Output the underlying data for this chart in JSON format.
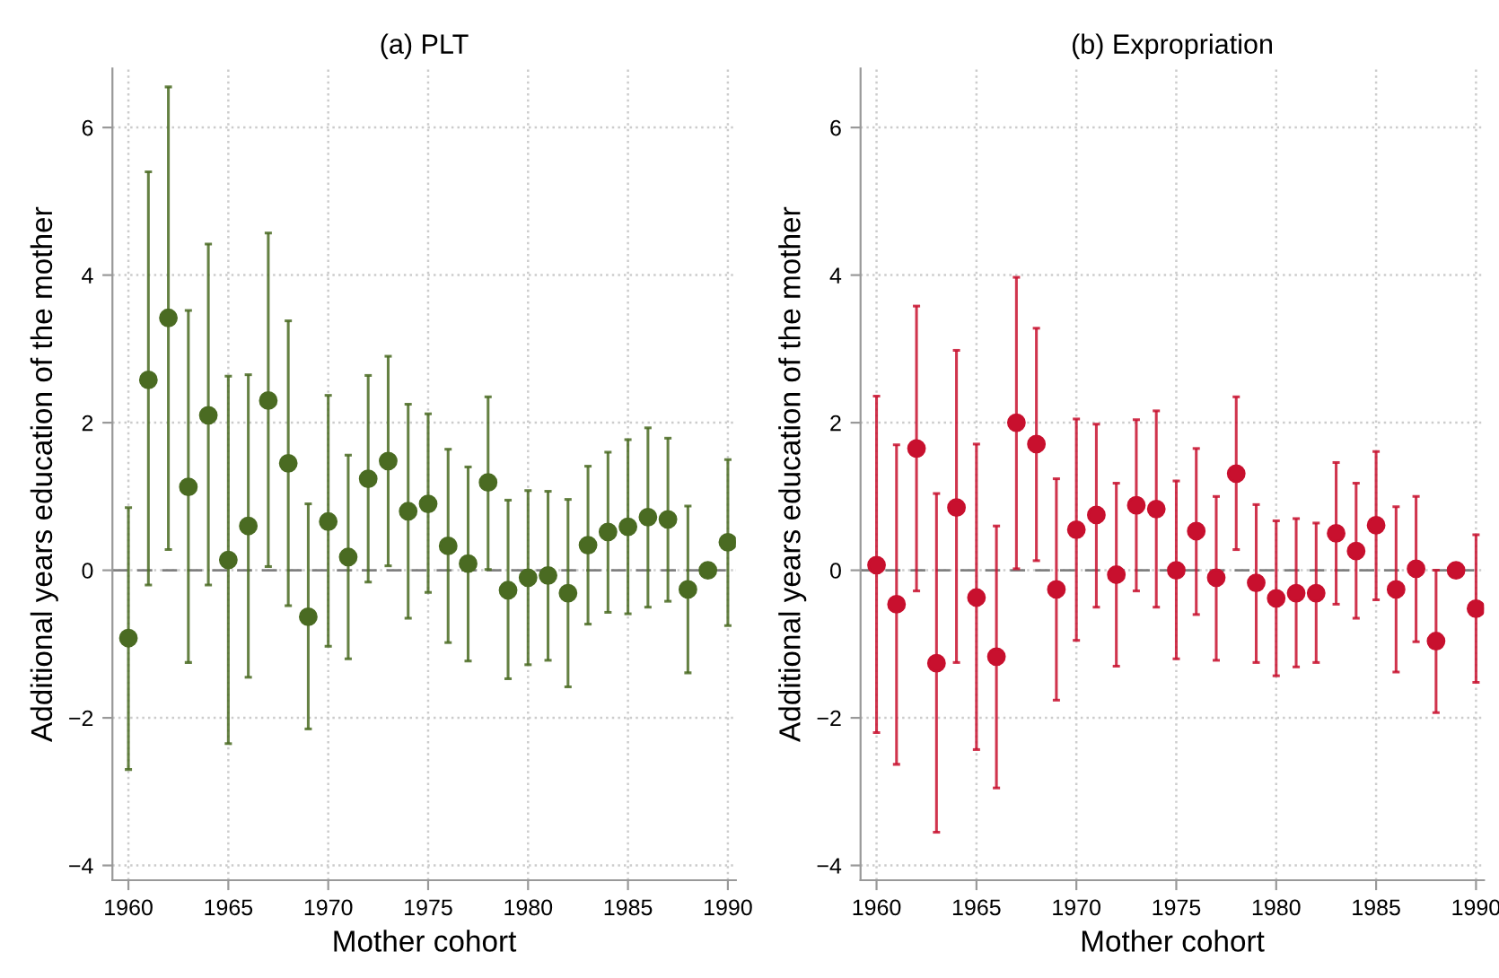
{
  "chart_data": [
    {
      "type": "scatter",
      "title": "(a) PLT",
      "xlabel": "Mother cohort",
      "ylabel": "Additional years education of the mother",
      "xlim": [
        1959.2,
        1990.4
      ],
      "ylim": [
        -4.2,
        6.8
      ],
      "xticks": [
        1960,
        1965,
        1970,
        1975,
        1980,
        1985,
        1990
      ],
      "yticks": [
        -4,
        -2,
        0,
        2,
        4,
        6
      ],
      "grid": true,
      "marker": "circle",
      "ref_lines": [
        {
          "axis": "y",
          "value": 0,
          "color": "#808080",
          "line_style": "dashed"
        }
      ],
      "series": [
        {
          "color": "#4a6b22",
          "x": [
            1960,
            1961,
            1962,
            1963,
            1964,
            1965,
            1966,
            1967,
            1968,
            1969,
            1970,
            1971,
            1972,
            1973,
            1974,
            1975,
            1976,
            1977,
            1978,
            1979,
            1980,
            1981,
            1982,
            1983,
            1984,
            1985,
            1986,
            1987,
            1988,
            1989,
            1990
          ],
          "values": [
            -0.92,
            2.58,
            3.42,
            1.13,
            2.1,
            0.14,
            0.6,
            2.3,
            1.45,
            -0.63,
            0.66,
            0.18,
            1.24,
            1.48,
            0.8,
            0.9,
            0.33,
            0.09,
            1.19,
            -0.27,
            -0.1,
            -0.07,
            -0.31,
            0.34,
            0.52,
            0.59,
            0.72,
            0.69,
            -0.26,
            0.0,
            0.38
          ],
          "errors": [
            [
              -2.7,
              0.85
            ],
            [
              -0.2,
              5.4
            ],
            [
              0.28,
              6.55
            ],
            [
              -1.25,
              3.52
            ],
            [
              -0.2,
              4.42
            ],
            [
              -2.35,
              2.63
            ],
            [
              -1.45,
              2.65
            ],
            [
              0.05,
              4.57
            ],
            [
              -0.48,
              3.38
            ],
            [
              -2.15,
              0.9
            ],
            [
              -1.03,
              2.37
            ],
            [
              -1.2,
              1.56
            ],
            [
              -0.16,
              2.64
            ],
            [
              0.06,
              2.9
            ],
            [
              -0.65,
              2.25
            ],
            [
              -0.3,
              2.12
            ],
            [
              -0.98,
              1.64
            ],
            [
              -1.23,
              1.4
            ],
            [
              0.01,
              2.35
            ],
            [
              -1.47,
              0.95
            ],
            [
              -1.28,
              1.08
            ],
            [
              -1.22,
              1.07
            ],
            [
              -1.58,
              0.96
            ],
            [
              -0.73,
              1.41
            ],
            [
              -0.57,
              1.6
            ],
            [
              -0.59,
              1.77
            ],
            [
              -0.5,
              1.93
            ],
            [
              -0.42,
              1.79
            ],
            [
              -1.39,
              0.87
            ],
            null,
            [
              -0.75,
              1.5
            ]
          ]
        }
      ]
    },
    {
      "type": "scatter",
      "title": "(b) Expropriation",
      "xlabel": "Mother cohort",
      "ylabel": "Additional years education of the mother",
      "xlim": [
        1959.2,
        1990.4
      ],
      "ylim": [
        -4.2,
        6.8
      ],
      "xticks": [
        1960,
        1965,
        1970,
        1975,
        1980,
        1985,
        1990
      ],
      "yticks": [
        -4,
        -2,
        0,
        2,
        4,
        6
      ],
      "grid": true,
      "marker": "circle",
      "ref_lines": [
        {
          "axis": "y",
          "value": 0,
          "color": "#808080",
          "line_style": "dashed"
        }
      ],
      "series": [
        {
          "color": "#c8102e",
          "x": [
            1960,
            1961,
            1962,
            1963,
            1964,
            1965,
            1966,
            1967,
            1968,
            1969,
            1970,
            1971,
            1972,
            1973,
            1974,
            1975,
            1976,
            1977,
            1978,
            1979,
            1980,
            1981,
            1982,
            1983,
            1984,
            1985,
            1986,
            1987,
            1988,
            1989,
            1990
          ],
          "values": [
            0.07,
            -0.46,
            1.65,
            -1.26,
            0.85,
            -0.37,
            -1.17,
            2.0,
            1.71,
            -0.26,
            0.55,
            0.75,
            -0.06,
            0.88,
            0.83,
            0.0,
            0.53,
            -0.1,
            1.31,
            -0.17,
            -0.38,
            -0.31,
            -0.31,
            0.5,
            0.26,
            0.61,
            -0.26,
            0.02,
            -0.96,
            0.0,
            -0.52
          ],
          "errors": [
            [
              -2.2,
              2.36
            ],
            [
              -2.63,
              1.7
            ],
            [
              -0.28,
              3.58
            ],
            [
              -3.55,
              1.04
            ],
            [
              -1.25,
              2.98
            ],
            [
              -2.43,
              1.71
            ],
            [
              -2.95,
              0.6
            ],
            [
              0.02,
              3.97
            ],
            [
              0.13,
              3.28
            ],
            [
              -1.76,
              1.24
            ],
            [
              -0.95,
              2.05
            ],
            [
              -0.5,
              1.98
            ],
            [
              -1.3,
              1.18
            ],
            [
              -0.28,
              2.04
            ],
            [
              -0.5,
              2.16
            ],
            [
              -1.2,
              1.21
            ],
            [
              -0.6,
              1.65
            ],
            [
              -1.22,
              1.0
            ],
            [
              0.28,
              2.35
            ],
            [
              -1.25,
              0.89
            ],
            [
              -1.43,
              0.67
            ],
            [
              -1.31,
              0.7
            ],
            [
              -1.25,
              0.64
            ],
            [
              -0.46,
              1.46
            ],
            [
              -0.65,
              1.18
            ],
            [
              -0.4,
              1.61
            ],
            [
              -1.38,
              0.86
            ],
            [
              -0.97,
              1.0
            ],
            [
              -1.93,
              0.0
            ],
            null,
            [
              -1.52,
              0.48
            ]
          ]
        }
      ]
    }
  ]
}
